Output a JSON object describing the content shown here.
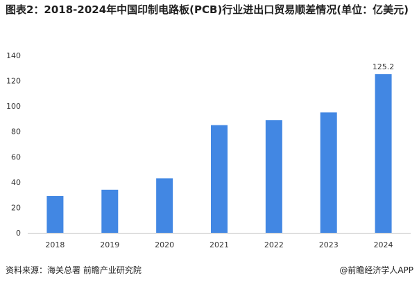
{
  "chart_data": {
    "type": "bar",
    "title": "图表2：2018-2024年中国印制电路板(PCB)行业进出口贸易顺差情况(单位：亿美元)",
    "categories": [
      "2018",
      "2019",
      "2020",
      "2021",
      "2022",
      "2023",
      "2024"
    ],
    "values": [
      29,
      34,
      43,
      85,
      89,
      95,
      125.2
    ],
    "data_labels": {
      "2024": "125.2"
    },
    "ylim": [
      0,
      140
    ],
    "yticks": [
      0,
      20,
      40,
      60,
      80,
      100,
      120,
      140
    ],
    "yticks_labels": [
      "0",
      "20",
      "40",
      "60",
      "80",
      "100",
      "120",
      "140"
    ],
    "xlabel": "",
    "ylabel": "",
    "bar_color": "#4287e3",
    "axis_color": "#bfbfbf",
    "grid": false,
    "legend": "none"
  },
  "footer": {
    "source": "资料来源：海关总署 前瞻产业研究院",
    "brand": "@前瞻经济学人APP"
  }
}
